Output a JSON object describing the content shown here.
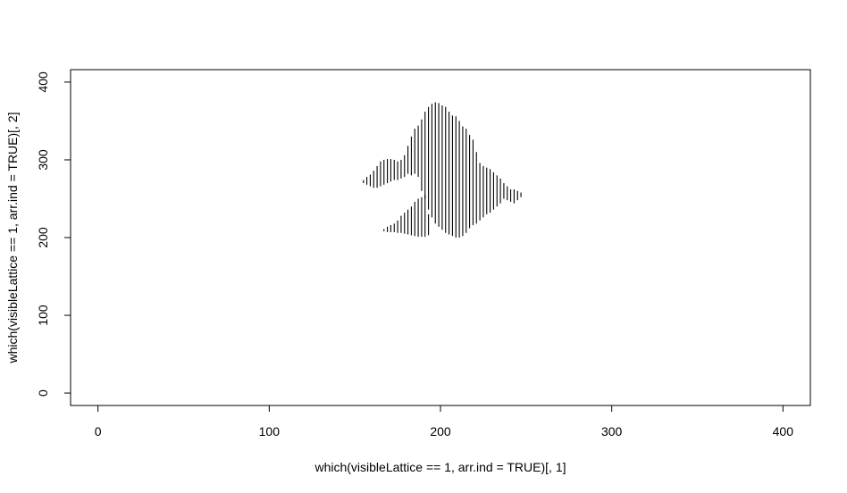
{
  "chart_data": {
    "type": "scatter",
    "title": "",
    "xlabel": "which(visibleLattice == 1, arr.ind = TRUE)[, 1]",
    "ylabel": "which(visibleLattice == 1, arr.ind = TRUE)[, 2]",
    "xlim": [
      -16,
      416
    ],
    "ylim": [
      -16,
      416
    ],
    "x_ticks": [
      0,
      100,
      200,
      300,
      400
    ],
    "y_ticks": [
      0,
      100,
      200,
      300,
      400
    ],
    "x_tick_labels": [
      "0",
      "100",
      "200",
      "300",
      "400"
    ],
    "y_tick_labels": [
      "0",
      "100",
      "200",
      "300",
      "400"
    ],
    "grid": false,
    "legend": "none",
    "point_style": "vertical-dash",
    "point_color": "#000000",
    "cluster_columns": [
      {
        "x": 155,
        "segments": [
          [
            270,
            274
          ]
        ]
      },
      {
        "x": 157,
        "segments": [
          [
            268,
            278
          ]
        ]
      },
      {
        "x": 159,
        "segments": [
          [
            266,
            281
          ]
        ]
      },
      {
        "x": 161,
        "segments": [
          [
            264,
            286
          ]
        ]
      },
      {
        "x": 163,
        "segments": [
          [
            264,
            292
          ]
        ]
      },
      {
        "x": 165,
        "segments": [
          [
            266,
            298
          ]
        ]
      },
      {
        "x": 167,
        "segments": [
          [
            268,
            300
          ],
          [
            208,
            211
          ]
        ]
      },
      {
        "x": 169,
        "segments": [
          [
            270,
            301
          ],
          [
            207,
            214
          ]
        ]
      },
      {
        "x": 171,
        "segments": [
          [
            272,
            301
          ],
          [
            207,
            216
          ]
        ]
      },
      {
        "x": 173,
        "segments": [
          [
            274,
            300
          ],
          [
            207,
            218
          ]
        ]
      },
      {
        "x": 175,
        "segments": [
          [
            274,
            298
          ],
          [
            206,
            222
          ]
        ]
      },
      {
        "x": 177,
        "segments": [
          [
            276,
            300
          ],
          [
            206,
            228
          ]
        ]
      },
      {
        "x": 179,
        "segments": [
          [
            278,
            306
          ],
          [
            205,
            232
          ]
        ]
      },
      {
        "x": 181,
        "segments": [
          [
            282,
            318
          ],
          [
            204,
            236
          ]
        ]
      },
      {
        "x": 183,
        "segments": [
          [
            280,
            330
          ],
          [
            203,
            240
          ]
        ]
      },
      {
        "x": 185,
        "segments": [
          [
            282,
            340
          ],
          [
            202,
            246
          ]
        ]
      },
      {
        "x": 187,
        "segments": [
          [
            278,
            344
          ],
          [
            201,
            250
          ]
        ]
      },
      {
        "x": 189,
        "segments": [
          [
            260,
            352
          ],
          [
            201,
            252
          ]
        ]
      },
      {
        "x": 191,
        "segments": [
          [
            250,
            362
          ],
          [
            201,
            255
          ]
        ]
      },
      {
        "x": 193,
        "segments": [
          [
            236,
            368
          ],
          [
            203,
            230
          ]
        ]
      },
      {
        "x": 195,
        "segments": [
          [
            226,
            372
          ]
        ]
      },
      {
        "x": 197,
        "segments": [
          [
            218,
            374
          ]
        ]
      },
      {
        "x": 199,
        "segments": [
          [
            214,
            373
          ]
        ]
      },
      {
        "x": 201,
        "segments": [
          [
            210,
            370
          ]
        ]
      },
      {
        "x": 203,
        "segments": [
          [
            206,
            368
          ]
        ]
      },
      {
        "x": 205,
        "segments": [
          [
            204,
            362
          ]
        ]
      },
      {
        "x": 207,
        "segments": [
          [
            202,
            357
          ]
        ]
      },
      {
        "x": 209,
        "segments": [
          [
            200,
            356
          ]
        ]
      },
      {
        "x": 211,
        "segments": [
          [
            200,
            350
          ]
        ]
      },
      {
        "x": 213,
        "segments": [
          [
            202,
            343
          ]
        ]
      },
      {
        "x": 215,
        "segments": [
          [
            206,
            340
          ]
        ]
      },
      {
        "x": 217,
        "segments": [
          [
            212,
            332
          ]
        ]
      },
      {
        "x": 219,
        "segments": [
          [
            216,
            326
          ]
        ]
      },
      {
        "x": 221,
        "segments": [
          [
            218,
            310
          ]
        ]
      },
      {
        "x": 223,
        "segments": [
          [
            222,
            296
          ]
        ]
      },
      {
        "x": 225,
        "segments": [
          [
            226,
            292
          ]
        ]
      },
      {
        "x": 227,
        "segments": [
          [
            230,
            290
          ]
        ]
      },
      {
        "x": 229,
        "segments": [
          [
            232,
            288
          ]
        ]
      },
      {
        "x": 231,
        "segments": [
          [
            236,
            284
          ]
        ]
      },
      {
        "x": 233,
        "segments": [
          [
            240,
            280
          ]
        ]
      },
      {
        "x": 235,
        "segments": [
          [
            244,
            276
          ]
        ]
      },
      {
        "x": 237,
        "segments": [
          [
            250,
            270
          ]
        ]
      },
      {
        "x": 239,
        "segments": [
          [
            248,
            266
          ]
        ]
      },
      {
        "x": 241,
        "segments": [
          [
            246,
            262
          ]
        ]
      },
      {
        "x": 243,
        "segments": [
          [
            244,
            262
          ]
        ]
      },
      {
        "x": 245,
        "segments": [
          [
            248,
            260
          ]
        ]
      },
      {
        "x": 247,
        "segments": [
          [
            252,
            258
          ]
        ]
      }
    ]
  }
}
